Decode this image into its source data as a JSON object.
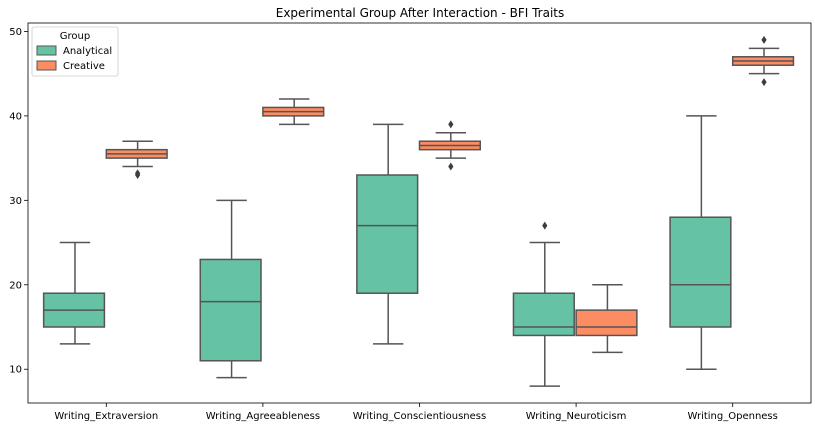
{
  "chart_data": {
    "type": "box",
    "title": "Experimental Group After Interaction - BFI Traits",
    "xlabel": "",
    "ylabel": "",
    "ylim": [
      6,
      51
    ],
    "yticks": [
      10,
      20,
      30,
      40,
      50
    ],
    "grid": false,
    "legend": {
      "title": "Group",
      "position": "top-left",
      "entries": [
        "Analytical",
        "Creative"
      ]
    },
    "categories": [
      "Writing_Extraversion",
      "Writing_Agreeableness",
      "Writing_Conscientiousness",
      "Writing_Neuroticism",
      "Writing_Openness"
    ],
    "series": [
      {
        "name": "Analytical",
        "color": "#66c2a5",
        "boxes": [
          {
            "whisker_low": 13,
            "q1": 15,
            "median": 17,
            "q3": 19,
            "whisker_high": 25,
            "outliers": []
          },
          {
            "whisker_low": 9,
            "q1": 11,
            "median": 18,
            "q3": 23,
            "whisker_high": 30,
            "outliers": []
          },
          {
            "whisker_low": 13,
            "q1": 19,
            "median": 27,
            "q3": 33,
            "whisker_high": 39,
            "outliers": []
          },
          {
            "whisker_low": 8,
            "q1": 14,
            "median": 15,
            "q3": 19,
            "whisker_high": 25,
            "outliers": [
              27
            ]
          },
          {
            "whisker_low": 10,
            "q1": 15,
            "median": 20,
            "q3": 28,
            "whisker_high": 40,
            "outliers": []
          }
        ]
      },
      {
        "name": "Creative",
        "color": "#fc8d62",
        "boxes": [
          {
            "whisker_low": 34,
            "q1": 35,
            "median": 35.5,
            "q3": 36,
            "whisker_high": 37,
            "outliers": [
              33,
              33.2
            ]
          },
          {
            "whisker_low": 39,
            "q1": 40,
            "median": 40.5,
            "q3": 41,
            "whisker_high": 42,
            "outliers": []
          },
          {
            "whisker_low": 35,
            "q1": 36,
            "median": 36.5,
            "q3": 37,
            "whisker_high": 38,
            "outliers": [
              34,
              39
            ]
          },
          {
            "whisker_low": 12,
            "q1": 14,
            "median": 15,
            "q3": 17,
            "whisker_high": 20,
            "outliers": []
          },
          {
            "whisker_low": 45,
            "q1": 46,
            "median": 46.5,
            "q3": 47,
            "whisker_high": 48,
            "outliers": [
              44,
              49
            ]
          }
        ]
      }
    ]
  }
}
